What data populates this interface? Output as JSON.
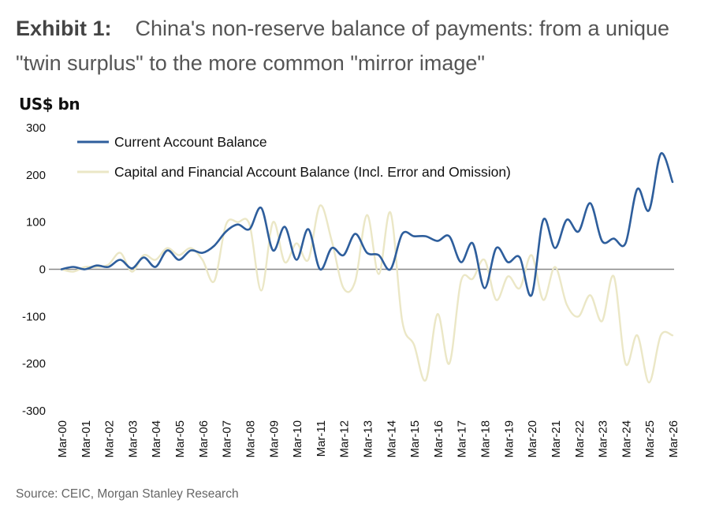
{
  "header": {
    "exhibit": "Exhibit 1:",
    "title": "China's non-reserve balance of payments: from a unique \"twin surplus\" to the more common \"mirror image\""
  },
  "footer": {
    "source": "Source: CEIC, Morgan Stanley Research"
  },
  "colors": {
    "current_account": "#2e5e9c",
    "capital_account": "#ebe7c6",
    "zero_line": "#888888"
  },
  "chart_data": {
    "type": "line",
    "title": "China's non-reserve balance of payments: from a unique \"twin surplus\" to the more common \"mirror image\"",
    "ylabel": "US$ bn",
    "xlabel": "",
    "ylim": [
      -300,
      300
    ],
    "yticks": [
      300,
      200,
      100,
      0,
      -100,
      -200,
      -300
    ],
    "categories": [
      "Mar-00",
      "Mar-01",
      "Mar-02",
      "Mar-03",
      "Mar-04",
      "Mar-05",
      "Mar-06",
      "Mar-07",
      "Mar-08",
      "Mar-09",
      "Mar-10",
      "Mar-11",
      "Mar-12",
      "Mar-13",
      "Mar-14",
      "Mar-15",
      "Mar-16",
      "Mar-17",
      "Mar-18",
      "Mar-19",
      "Mar-20",
      "Mar-21",
      "Mar-22",
      "Mar-23",
      "Mar-24",
      "Mar-25",
      "Mar-26"
    ],
    "legend_position": "top-left",
    "grid": false,
    "series": [
      {
        "name": "Current Account Balance",
        "x": [
          2000.0,
          2000.5,
          2001.0,
          2001.5,
          2002.0,
          2002.5,
          2003.0,
          2003.5,
          2004.0,
          2004.5,
          2005.0,
          2005.5,
          2006.0,
          2006.5,
          2007.0,
          2007.5,
          2008.0,
          2008.5,
          2009.0,
          2009.5,
          2010.0,
          2010.5,
          2011.0,
          2011.5,
          2012.0,
          2012.5,
          2013.0,
          2013.5,
          2014.0,
          2014.5,
          2015.0,
          2015.5,
          2016.0,
          2016.5,
          2017.0,
          2017.5,
          2018.0,
          2018.5,
          2019.0,
          2019.5,
          2020.0,
          2020.5,
          2021.0,
          2021.5,
          2022.0,
          2022.5,
          2023.0,
          2023.5,
          2024.0,
          2024.5,
          2025.0,
          2025.5,
          2026.0
        ],
        "values": [
          0,
          5,
          0,
          8,
          5,
          20,
          2,
          25,
          5,
          40,
          20,
          40,
          35,
          50,
          80,
          95,
          85,
          130,
          40,
          90,
          20,
          85,
          0,
          45,
          30,
          75,
          35,
          30,
          0,
          75,
          70,
          70,
          60,
          70,
          15,
          55,
          -40,
          45,
          15,
          25,
          -55,
          105,
          45,
          105,
          80,
          140,
          60,
          65,
          55,
          170,
          125,
          245,
          185
        ]
      },
      {
        "name": "Capital and Financial Account Balance (Incl. Error and Omission)",
        "x": [
          2000.0,
          2000.5,
          2001.0,
          2001.5,
          2002.0,
          2002.5,
          2003.0,
          2003.5,
          2004.0,
          2004.5,
          2005.0,
          2005.5,
          2006.0,
          2006.5,
          2007.0,
          2007.5,
          2008.0,
          2008.5,
          2009.0,
          2009.5,
          2010.0,
          2010.5,
          2011.0,
          2011.5,
          2012.0,
          2012.5,
          2013.0,
          2013.5,
          2014.0,
          2014.5,
          2015.0,
          2015.5,
          2016.0,
          2016.5,
          2017.0,
          2017.5,
          2018.0,
          2018.5,
          2019.0,
          2019.5,
          2020.0,
          2020.5,
          2021.0,
          2021.5,
          2022.0,
          2022.5,
          2023.0,
          2023.5,
          2024.0,
          2024.5,
          2025.0,
          2025.5,
          2026.0
        ],
        "values": [
          0,
          -5,
          5,
          5,
          10,
          35,
          -5,
          30,
          20,
          45,
          30,
          45,
          20,
          -25,
          95,
          100,
          95,
          -45,
          100,
          15,
          55,
          20,
          135,
          60,
          -40,
          -25,
          115,
          -10,
          120,
          -110,
          -160,
          -235,
          -95,
          -200,
          -25,
          -20,
          20,
          -65,
          -15,
          -40,
          30,
          -65,
          5,
          -75,
          -100,
          -55,
          -110,
          -15,
          -200,
          -140,
          -240,
          -140,
          -140
        ]
      }
    ]
  }
}
